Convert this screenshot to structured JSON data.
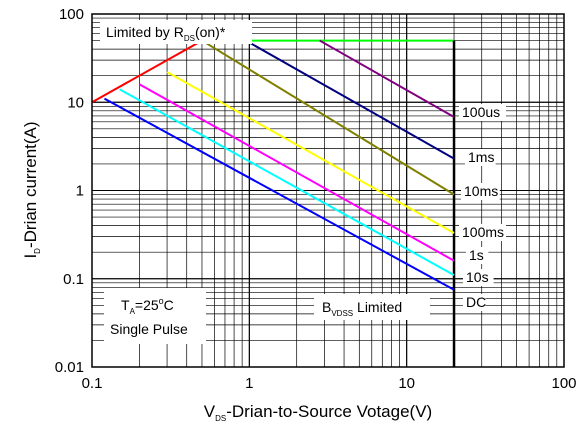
{
  "chart_data": {
    "type": "line",
    "x_scale": "log",
    "y_scale": "log",
    "xlim": [
      0.1,
      100
    ],
    "ylim": [
      0.01,
      100
    ],
    "grid": true,
    "x_ticks": [
      "0.1",
      "1",
      "10",
      "100"
    ],
    "y_ticks": [
      "100",
      "10",
      "1",
      "0.1",
      "0.01"
    ],
    "xlabel": {
      "main": "V",
      "sub": "DS",
      "rest": "-Drian-to-Source Votage(V)"
    },
    "ylabel": {
      "main": "I",
      "sub": "D",
      "rest": "-Drian current(A)"
    },
    "annotations": {
      "rds_limit": {
        "main": "Limited by R",
        "sub": "DS",
        "rest": "(on)*"
      },
      "ta": {
        "main": "T",
        "sub": "A",
        "rest": "=25",
        "sup": "o",
        "unit": "C"
      },
      "pulse": "Single Pulse",
      "bvdss": {
        "main": "B",
        "sub": "VDSS",
        "rest": " Limited"
      }
    },
    "series": [
      {
        "name": "100us",
        "color": "#800080",
        "x": [
          2.8,
          20
        ],
        "y": [
          50,
          6.8
        ]
      },
      {
        "name": "1ms",
        "color": "#000080",
        "x": [
          0.95,
          20
        ],
        "y": [
          50,
          2.3
        ]
      },
      {
        "name": "10ms",
        "color": "#808000",
        "x": [
          0.5,
          20
        ],
        "y": [
          50,
          0.9
        ]
      },
      {
        "name": "100ms",
        "color": "#ffff00",
        "x": [
          0.3,
          20
        ],
        "y": [
          22,
          0.33
        ]
      },
      {
        "name": "1s",
        "color": "#ff00ff",
        "x": [
          0.2,
          20
        ],
        "y": [
          16,
          0.16
        ]
      },
      {
        "name": "10s",
        "color": "#00ffff",
        "x": [
          0.15,
          20
        ],
        "y": [
          14,
          0.11
        ]
      },
      {
        "name": "DC",
        "color": "#0000ff",
        "x": [
          0.12,
          20
        ],
        "y": [
          11,
          0.075
        ]
      }
    ],
    "limit_lines": [
      {
        "id": "rds-limit",
        "color": "#ff0000",
        "x": [
          0.1,
          0.5
        ],
        "y": [
          10,
          50
        ]
      },
      {
        "id": "current-limit",
        "color": "#00ff00",
        "x": [
          0.5,
          20
        ],
        "y": [
          50,
          50
        ]
      },
      {
        "id": "bvdss-limit",
        "color": "#000000",
        "x": [
          20,
          20
        ],
        "y": [
          0.01,
          50
        ]
      }
    ]
  }
}
